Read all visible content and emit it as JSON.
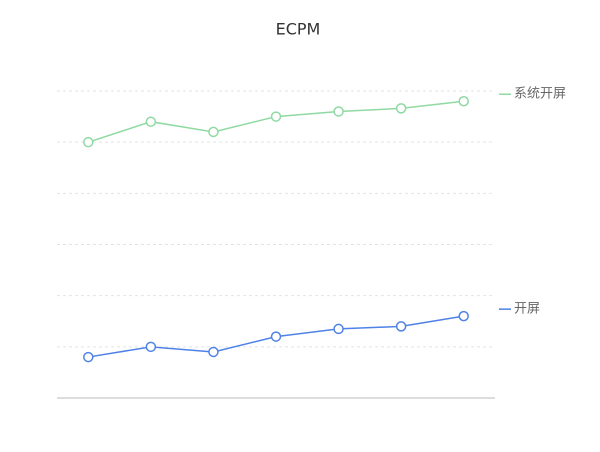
{
  "chart_data": {
    "type": "line",
    "title": "ECPM",
    "categories": [
      null,
      null,
      null,
      null,
      null,
      null,
      null
    ],
    "series": [
      {
        "name": "系统开屏",
        "color": "#8fd9a2",
        "values": [
          5.0,
          5.4,
          5.2,
          5.5,
          5.6,
          5.66,
          5.8
        ]
      },
      {
        "name": "开屏",
        "color": "#4e82e6",
        "values": [
          0.8,
          1.0,
          0.9,
          1.2,
          1.35,
          1.4,
          1.6
        ]
      }
    ],
    "ylim": [
      0,
      6
    ],
    "yticks": [
      0,
      1,
      2,
      3,
      4,
      5,
      6
    ],
    "grid": true
  }
}
